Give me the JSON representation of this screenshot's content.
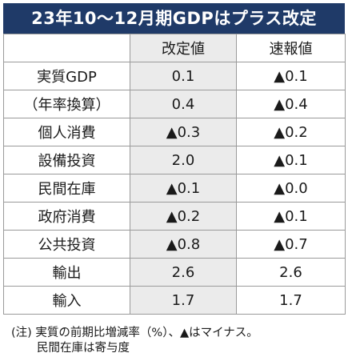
{
  "title": "23年10〜12月期GDPはプラス改定",
  "columns": {
    "label": "",
    "revised": "改定値",
    "preliminary": "速報値"
  },
  "rows": [
    {
      "label": "実質GDP",
      "revised": "0.1",
      "preliminary": "▲0.1"
    },
    {
      "label": "（年率換算）",
      "revised": "0.4",
      "preliminary": "▲0.4"
    },
    {
      "label": "個人消費",
      "revised": "▲0.3",
      "preliminary": "▲0.2"
    },
    {
      "label": "設備投資",
      "revised": "2.0",
      "preliminary": "▲0.1"
    },
    {
      "label": "民間在庫",
      "revised": "▲0.1",
      "preliminary": "▲0.0"
    },
    {
      "label": "政府消費",
      "revised": "▲0.2",
      "preliminary": "▲0.1"
    },
    {
      "label": "公共投資",
      "revised": "▲0.8",
      "preliminary": "▲0.7"
    },
    {
      "label": "輸出",
      "revised": "2.6",
      "preliminary": "2.6"
    },
    {
      "label": "輸入",
      "revised": "1.7",
      "preliminary": "1.7"
    }
  ],
  "note": {
    "line1": "(注) 実質の前期比増減率（%）、▲はマイナス。",
    "line2": "民間在庫は寄与度"
  },
  "colors": {
    "title_bg": "#1f3a68",
    "title_text": "#ffffff",
    "shaded_column": "#ebebeb",
    "border": "#9a9a9a"
  }
}
